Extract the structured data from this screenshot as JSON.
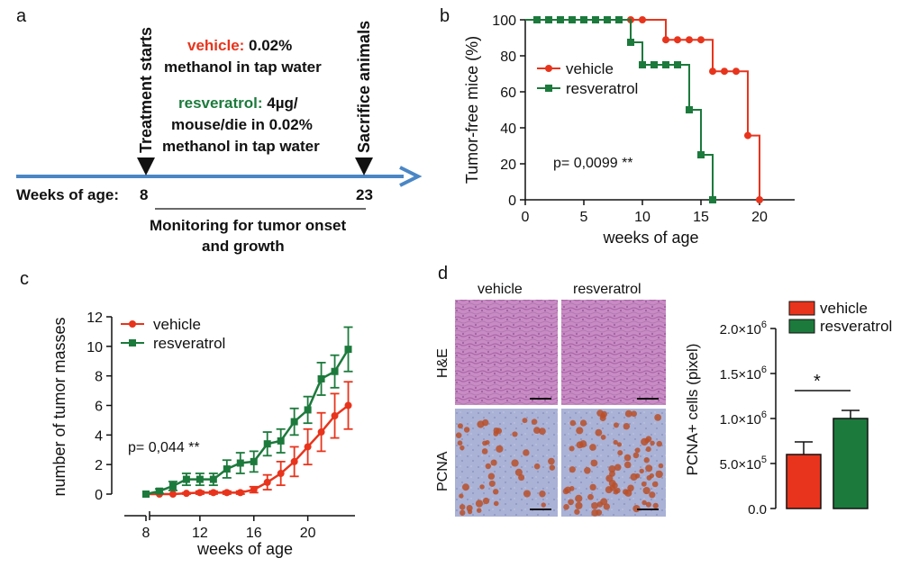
{
  "panels": {
    "a": {
      "letter": "a",
      "treatment_starts": "Treatment starts",
      "sacrifice": "Sacrifice animals",
      "vehicle_label": "vehicle:",
      "vehicle_text_1": " 0.02%",
      "vehicle_text_2": "methanol in tap water",
      "resv_label": "resveratrol:",
      "resv_text_1": " 4µg/",
      "resv_text_2": "mouse/die in 0.02%",
      "resv_text_3": "methanol in tap water",
      "weeks_label": "Weeks of age:",
      "start_week": "8",
      "end_week": "23",
      "monitoring_1": "Monitoring for tumor onset",
      "monitoring_2": "and growth"
    },
    "b": {
      "letter": "b",
      "pvalue": "p= 0,0099 **"
    },
    "c": {
      "letter": "c",
      "pvalue": "p= 0,044 **"
    },
    "d": {
      "letter": "d",
      "col_vehicle": "vehicle",
      "col_resveratrol": "resveratrol",
      "row_he": "H&E",
      "row_pcna": "PCNA",
      "significance": "*"
    }
  },
  "colors": {
    "vehicle": "#e8341c",
    "resveratrol": "#1c7a3c",
    "arrow": "#4a86c5"
  },
  "chart_data": [
    {
      "id": "b",
      "type": "line",
      "subtype": "step",
      "xlabel": "weeks of age",
      "ylabel": "Tumor-free mice (%)",
      "xlim": [
        0,
        23
      ],
      "ylim": [
        0,
        100
      ],
      "xticks": [
        "0",
        "5",
        "10",
        "15",
        "20"
      ],
      "yticks": [
        "0",
        "20",
        "40",
        "60",
        "80",
        "100"
      ],
      "legend_position": "top-left",
      "series": [
        {
          "name": "vehicle",
          "steps": [
            [
              0,
              100
            ],
            [
              12,
              88.9
            ],
            [
              16,
              71.4
            ],
            [
              19,
              35.7
            ],
            [
              20,
              0
            ]
          ],
          "markers": [
            [
              1,
              100
            ],
            [
              2,
              100
            ],
            [
              3,
              100
            ],
            [
              4,
              100
            ],
            [
              5,
              100
            ],
            [
              6,
              100
            ],
            [
              7,
              100
            ],
            [
              8,
              100
            ],
            [
              9,
              100
            ],
            [
              10,
              100
            ],
            [
              12,
              88.9
            ],
            [
              13,
              88.9
            ],
            [
              14,
              88.9
            ],
            [
              15,
              88.9
            ],
            [
              16,
              71.4
            ],
            [
              17,
              71.4
            ],
            [
              18,
              71.4
            ],
            [
              19,
              35.7
            ],
            [
              20,
              0
            ]
          ]
        },
        {
          "name": "resveratrol",
          "steps": [
            [
              0,
              100
            ],
            [
              9,
              87.5
            ],
            [
              10,
              75
            ],
            [
              13,
              75
            ],
            [
              14,
              50
            ],
            [
              15,
              25
            ],
            [
              16,
              0
            ]
          ],
          "markers": [
            [
              1,
              100
            ],
            [
              2,
              100
            ],
            [
              3,
              100
            ],
            [
              4,
              100
            ],
            [
              5,
              100
            ],
            [
              6,
              100
            ],
            [
              7,
              100
            ],
            [
              8,
              100
            ],
            [
              9,
              87.5
            ],
            [
              10,
              75
            ],
            [
              11,
              75
            ],
            [
              12,
              75
            ],
            [
              13,
              75
            ],
            [
              14,
              50
            ],
            [
              15,
              25
            ],
            [
              16,
              0
            ]
          ]
        }
      ]
    },
    {
      "id": "c",
      "type": "line",
      "xlabel": "weeks of age",
      "ylabel": "number of tumor masses",
      "xlim": [
        6,
        23.5
      ],
      "ylim": [
        0,
        12
      ],
      "xticks": [
        "8",
        "12",
        "16",
        "20"
      ],
      "yticks": [
        "0",
        "2",
        "4",
        "6",
        "8",
        "10",
        "12"
      ],
      "legend_position": "top-left",
      "series": [
        {
          "name": "vehicle",
          "x": [
            8,
            9,
            10,
            11,
            12,
            13,
            14,
            15,
            16,
            17,
            18,
            19,
            20,
            21,
            22,
            23
          ],
          "y": [
            0,
            0,
            0,
            0.05,
            0.1,
            0.1,
            0.1,
            0.1,
            0.3,
            0.8,
            1.4,
            2.2,
            3.2,
            4.2,
            5.3,
            6.0
          ],
          "err": [
            0,
            0,
            0,
            0.05,
            0.1,
            0.1,
            0.1,
            0.1,
            0.2,
            0.5,
            0.8,
            1.0,
            1.2,
            1.3,
            1.5,
            1.6
          ]
        },
        {
          "name": "resveratrol",
          "x": [
            8,
            9,
            10,
            11,
            12,
            13,
            14,
            15,
            16,
            17,
            18,
            19,
            20,
            21,
            22,
            23
          ],
          "y": [
            0,
            0.2,
            0.55,
            1.0,
            1.0,
            1.0,
            1.7,
            2.1,
            2.2,
            3.4,
            3.6,
            4.9,
            5.7,
            7.8,
            8.3,
            9.8
          ],
          "err": [
            0,
            0.15,
            0.3,
            0.4,
            0.4,
            0.4,
            0.6,
            0.7,
            0.7,
            0.8,
            0.8,
            0.9,
            0.9,
            1.1,
            1.1,
            1.5
          ]
        }
      ]
    },
    {
      "id": "d",
      "type": "bar",
      "ylabel": "PCNA+ cells (pixel)",
      "ylim": [
        0,
        2000000
      ],
      "ytick_values": [
        0,
        500000,
        1000000,
        1500000,
        2000000
      ],
      "ytick_base": [
        "0.0",
        "5.0×10",
        "1.0×10",
        "1.5×10",
        "2.0×10"
      ],
      "ytick_exp": [
        "",
        "5",
        "6",
        "6",
        "6"
      ],
      "legend_position": "top-right",
      "categories": [
        "vehicle",
        "resveratrol"
      ],
      "values": [
        600000,
        1000000
      ],
      "err": [
        140000,
        90000
      ]
    }
  ]
}
